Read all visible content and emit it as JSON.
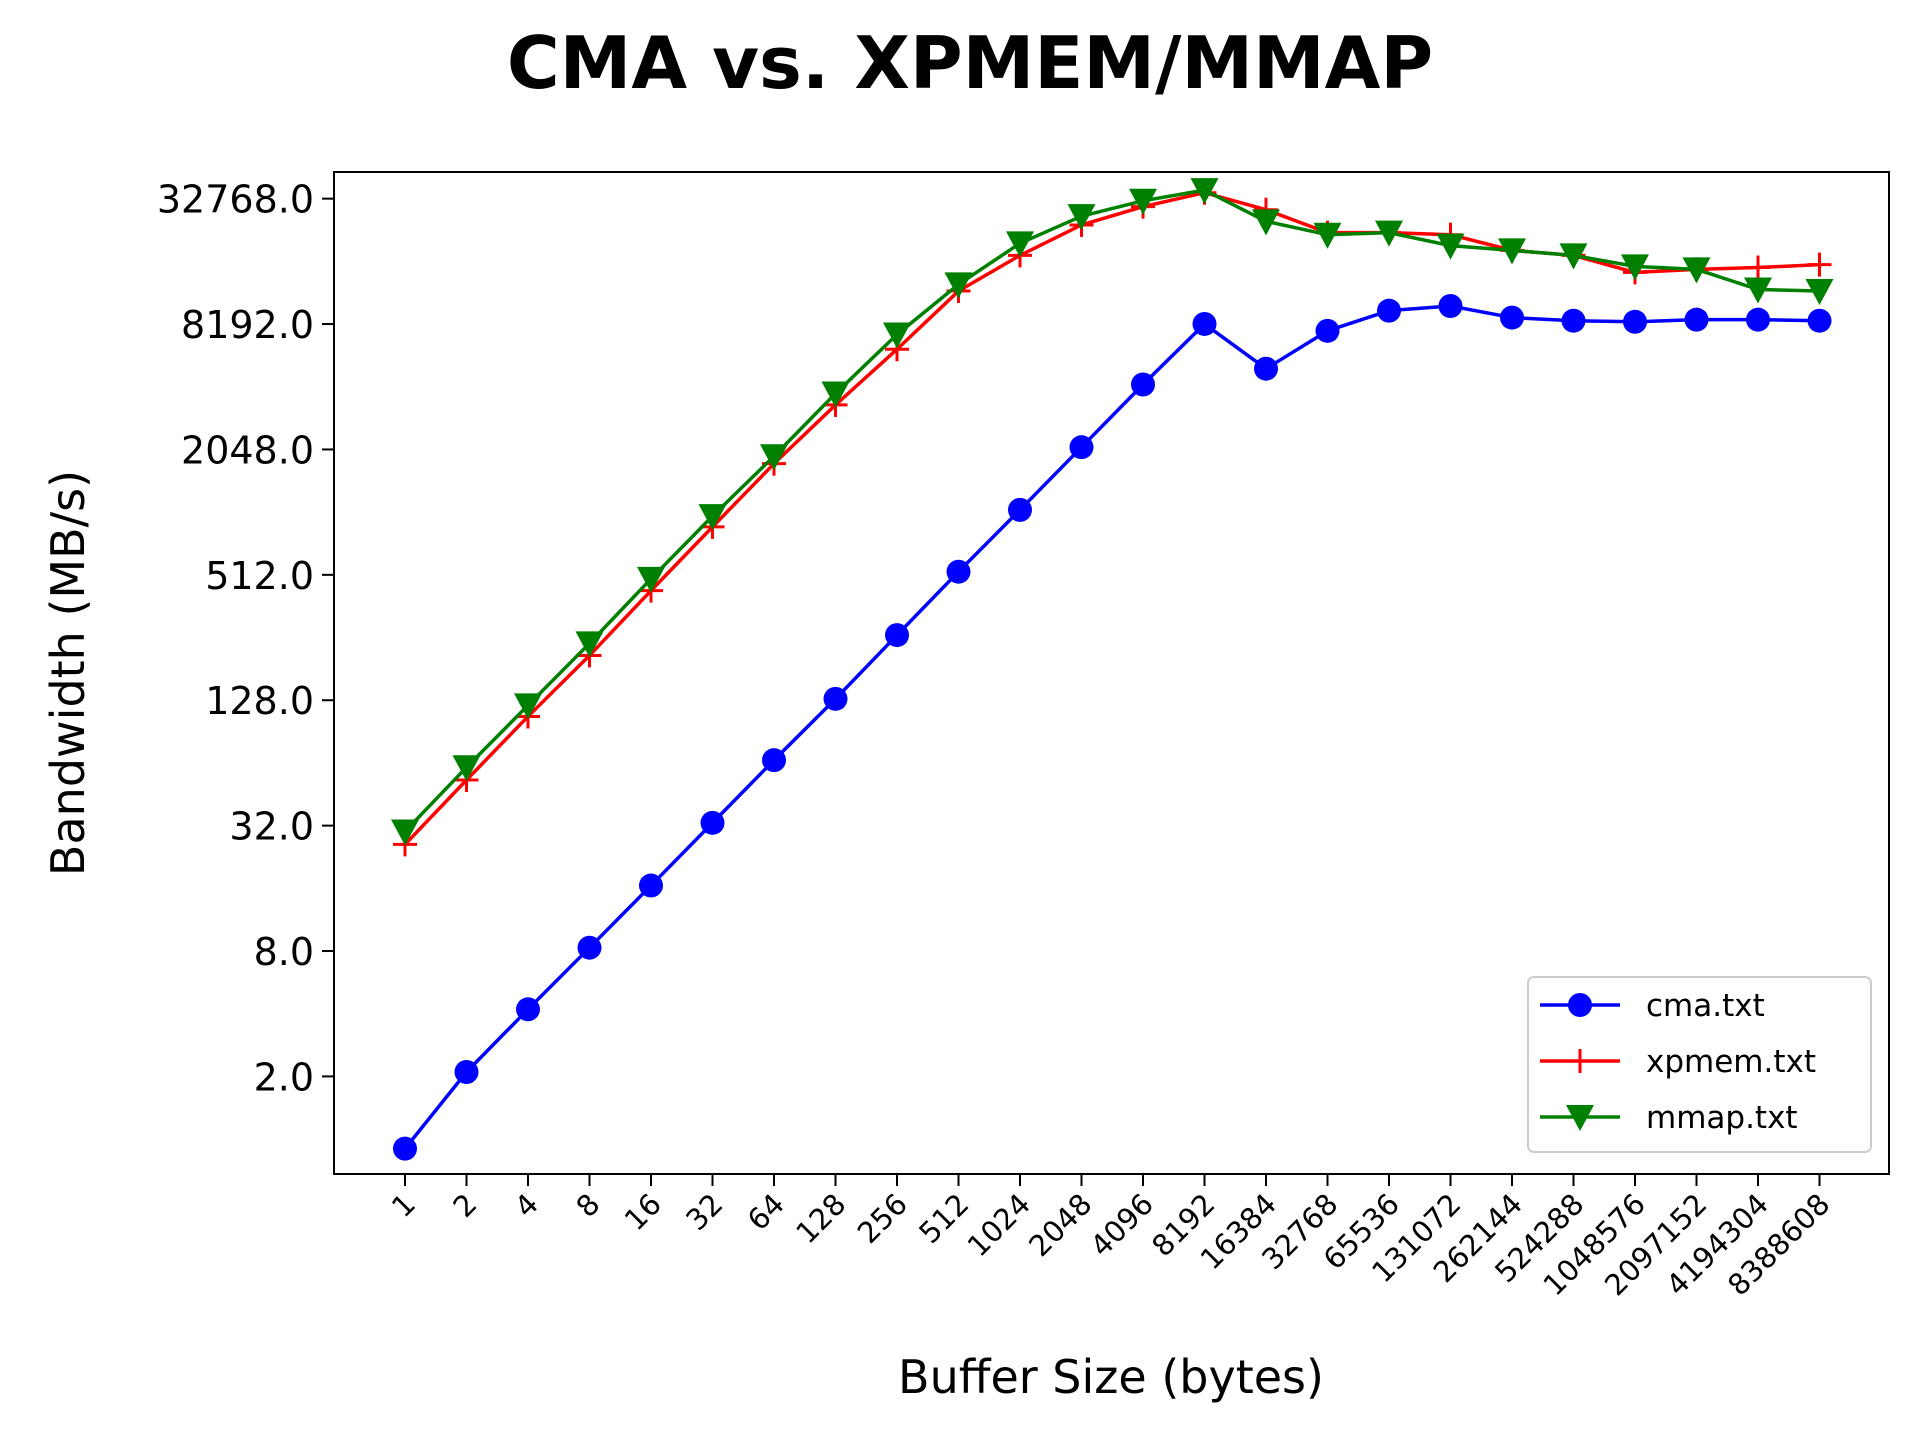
{
  "chart_data": {
    "type": "line",
    "title": "CMA vs. XPMEM/MMAP",
    "xlabel": "Buffer Size (bytes)",
    "ylabel": "Bandwidth (MB/s)",
    "yscale": "log2",
    "ylim": [
      0.68,
      44000
    ],
    "x_categories": [
      "1",
      "2",
      "4",
      "8",
      "16",
      "32",
      "64",
      "128",
      "256",
      "512",
      "1024",
      "2048",
      "4096",
      "8192",
      "16384",
      "32768",
      "65536",
      "131072",
      "262144",
      "524288",
      "1048576",
      "2097152",
      "4194304",
      "8388608"
    ],
    "y_ticks": [
      2.0,
      8.0,
      32.0,
      128.0,
      512.0,
      2048.0,
      8192.0,
      32768.0
    ],
    "y_tick_labels": [
      "2.0",
      "8.0",
      "32.0",
      "128.0",
      "512.0",
      "2048.0",
      "8192.0",
      "32768.0"
    ],
    "legend_position": "lower-right",
    "grid": false,
    "series": [
      {
        "name": "cma.txt",
        "color": "#0000ff",
        "marker": "circle",
        "values": [
          0.9,
          2.1,
          4.2,
          8.3,
          16.5,
          33,
          66,
          130,
          263,
          530,
          1050,
          2100,
          4200,
          8200,
          5000,
          7600,
          9500,
          10000,
          8800,
          8500,
          8400,
          8600,
          8600,
          8500
        ]
      },
      {
        "name": "xpmem.txt",
        "color": "#ff0000",
        "marker": "plus",
        "values": [
          26,
          53,
          107,
          210,
          430,
          870,
          1750,
          3350,
          6200,
          11800,
          17500,
          24500,
          30000,
          35000,
          29000,
          22500,
          22500,
          22000,
          18500,
          17500,
          14500,
          15000,
          15300,
          15800
        ]
      },
      {
        "name": "mmap.txt",
        "color": "#008000",
        "marker": "triangle-down",
        "values": [
          30,
          61,
          121,
          240,
          490,
          980,
          1900,
          3800,
          7300,
          12700,
          20000,
          27000,
          32000,
          36000,
          25500,
          22000,
          22500,
          19500,
          18500,
          17500,
          15500,
          15000,
          12000,
          11800
        ]
      }
    ]
  }
}
